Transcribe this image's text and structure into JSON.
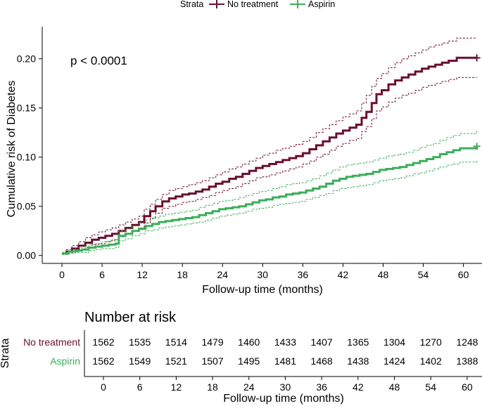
{
  "chart_data": {
    "type": "line",
    "subtype": "kaplan-meier cumulative incidence",
    "ylabel": "Cumulative risk of Diabetes",
    "xlabel": "Follow-up time (months)",
    "xlim": [
      0,
      62
    ],
    "ylim": [
      0,
      0.22
    ],
    "xticks": [
      0,
      6,
      12,
      18,
      24,
      30,
      36,
      42,
      48,
      54,
      60
    ],
    "yticks": [
      0.0,
      0.05,
      0.1,
      0.15,
      0.2
    ],
    "ytick_labels": [
      "0.00",
      "0.05",
      "0.10",
      "0.15",
      "0.20"
    ],
    "annotation": "p < 0.0001",
    "legend": {
      "title": "Strata",
      "position": "top",
      "entries": [
        "No treatment",
        "Aspirin"
      ]
    },
    "series": [
      {
        "name": "No treatment",
        "color": "#6b0f2a",
        "censor_mark": [
          62,
          0.201
        ],
        "x": [
          0,
          0.7,
          1.5,
          2.5,
          3.5,
          4.5,
          5.5,
          6.5,
          7.5,
          8.5,
          9.5,
          10.5,
          11.5,
          12.3,
          13.2,
          14,
          15,
          16,
          17,
          18,
          19,
          20,
          21,
          22,
          23,
          24,
          25,
          26,
          27,
          28,
          29,
          30,
          31,
          32,
          33,
          34,
          35,
          36,
          37,
          38,
          39,
          40,
          41,
          42,
          43,
          44,
          44.8,
          45.5,
          46.3,
          47,
          47.8,
          48.8,
          49.8,
          50.8,
          51.8,
          52.8,
          53.8,
          54.8,
          55.8,
          56.8,
          57.8,
          59,
          62
        ],
        "y": [
          0.002,
          0.004,
          0.007,
          0.01,
          0.013,
          0.016,
          0.018,
          0.02,
          0.022,
          0.025,
          0.028,
          0.031,
          0.034,
          0.04,
          0.045,
          0.05,
          0.055,
          0.058,
          0.06,
          0.062,
          0.063,
          0.065,
          0.067,
          0.07,
          0.073,
          0.075,
          0.078,
          0.08,
          0.083,
          0.086,
          0.089,
          0.091,
          0.093,
          0.095,
          0.097,
          0.099,
          0.101,
          0.104,
          0.108,
          0.112,
          0.116,
          0.12,
          0.124,
          0.127,
          0.13,
          0.133,
          0.14,
          0.146,
          0.155,
          0.164,
          0.168,
          0.174,
          0.178,
          0.181,
          0.184,
          0.187,
          0.19,
          0.192,
          0.194,
          0.196,
          0.198,
          0.201,
          0.201
        ],
        "upper": [
          0.003,
          0.006,
          0.01,
          0.014,
          0.018,
          0.021,
          0.024,
          0.026,
          0.028,
          0.031,
          0.034,
          0.037,
          0.04,
          0.047,
          0.052,
          0.057,
          0.062,
          0.066,
          0.068,
          0.07,
          0.072,
          0.074,
          0.076,
          0.079,
          0.082,
          0.085,
          0.088,
          0.09,
          0.093,
          0.096,
          0.099,
          0.102,
          0.104,
          0.107,
          0.109,
          0.111,
          0.113,
          0.116,
          0.12,
          0.125,
          0.129,
          0.133,
          0.137,
          0.141,
          0.144,
          0.147,
          0.155,
          0.163,
          0.172,
          0.18,
          0.185,
          0.191,
          0.196,
          0.2,
          0.203,
          0.206,
          0.209,
          0.212,
          0.214,
          0.216,
          0.218,
          0.221,
          0.221
        ],
        "lower": [
          0.001,
          0.002,
          0.004,
          0.006,
          0.008,
          0.011,
          0.012,
          0.014,
          0.016,
          0.019,
          0.022,
          0.025,
          0.028,
          0.033,
          0.038,
          0.043,
          0.048,
          0.05,
          0.052,
          0.054,
          0.055,
          0.057,
          0.059,
          0.061,
          0.064,
          0.066,
          0.068,
          0.07,
          0.073,
          0.076,
          0.079,
          0.08,
          0.082,
          0.084,
          0.086,
          0.088,
          0.09,
          0.093,
          0.096,
          0.1,
          0.103,
          0.107,
          0.111,
          0.114,
          0.117,
          0.119,
          0.126,
          0.131,
          0.139,
          0.147,
          0.151,
          0.156,
          0.16,
          0.163,
          0.165,
          0.168,
          0.171,
          0.173,
          0.175,
          0.177,
          0.179,
          0.181,
          0.181
        ]
      },
      {
        "name": "Aspirin",
        "color": "#3cae5a",
        "censor_mark": [
          62,
          0.111
        ],
        "x": [
          0,
          1,
          2,
          3,
          4,
          5,
          6,
          7,
          8,
          8.5,
          9.5,
          10.5,
          11.5,
          12.5,
          13.5,
          14.5,
          15.5,
          16.5,
          17.5,
          18.5,
          19.5,
          20.5,
          21.5,
          22.5,
          23.5,
          24.5,
          25.5,
          26.5,
          27.5,
          28.5,
          29.5,
          30.5,
          31.5,
          32.5,
          33.5,
          34.5,
          35.5,
          36.5,
          37.5,
          38.5,
          39.5,
          40.5,
          41.5,
          42.5,
          43.5,
          44.5,
          45.5,
          46.5,
          47.5,
          48.5,
          49.5,
          50.5,
          51.5,
          52.5,
          53.5,
          54.5,
          55.5,
          56.5,
          57.5,
          58.5,
          59.5,
          62
        ],
        "y": [
          0.002,
          0.004,
          0.005,
          0.006,
          0.008,
          0.009,
          0.01,
          0.011,
          0.012,
          0.02,
          0.022,
          0.025,
          0.027,
          0.03,
          0.032,
          0.034,
          0.035,
          0.036,
          0.037,
          0.038,
          0.039,
          0.041,
          0.043,
          0.045,
          0.047,
          0.048,
          0.049,
          0.05,
          0.052,
          0.054,
          0.056,
          0.057,
          0.059,
          0.06,
          0.062,
          0.063,
          0.064,
          0.066,
          0.068,
          0.07,
          0.073,
          0.076,
          0.078,
          0.08,
          0.081,
          0.082,
          0.083,
          0.085,
          0.087,
          0.088,
          0.089,
          0.09,
          0.092,
          0.094,
          0.096,
          0.098,
          0.1,
          0.103,
          0.105,
          0.107,
          0.109,
          0.111
        ],
        "upper": [
          0.003,
          0.006,
          0.008,
          0.009,
          0.011,
          0.012,
          0.014,
          0.015,
          0.016,
          0.025,
          0.027,
          0.03,
          0.033,
          0.036,
          0.038,
          0.04,
          0.042,
          0.043,
          0.044,
          0.045,
          0.046,
          0.049,
          0.051,
          0.053,
          0.055,
          0.056,
          0.057,
          0.059,
          0.061,
          0.063,
          0.065,
          0.066,
          0.068,
          0.07,
          0.072,
          0.073,
          0.074,
          0.076,
          0.078,
          0.081,
          0.084,
          0.087,
          0.09,
          0.092,
          0.093,
          0.094,
          0.095,
          0.097,
          0.099,
          0.101,
          0.102,
          0.103,
          0.105,
          0.107,
          0.11,
          0.112,
          0.114,
          0.117,
          0.12,
          0.122,
          0.124,
          0.127
        ],
        "lower": [
          0.001,
          0.002,
          0.003,
          0.003,
          0.005,
          0.006,
          0.007,
          0.007,
          0.008,
          0.015,
          0.017,
          0.02,
          0.022,
          0.025,
          0.026,
          0.028,
          0.029,
          0.03,
          0.031,
          0.032,
          0.033,
          0.034,
          0.036,
          0.038,
          0.04,
          0.041,
          0.042,
          0.043,
          0.045,
          0.047,
          0.048,
          0.049,
          0.051,
          0.052,
          0.053,
          0.054,
          0.055,
          0.057,
          0.059,
          0.061,
          0.063,
          0.066,
          0.068,
          0.069,
          0.07,
          0.071,
          0.072,
          0.074,
          0.076,
          0.077,
          0.078,
          0.079,
          0.081,
          0.083,
          0.084,
          0.086,
          0.088,
          0.09,
          0.092,
          0.093,
          0.095,
          0.096
        ]
      }
    ],
    "risk_table": {
      "title": "Number at risk",
      "ylabel": "Strata",
      "xlabel": "Follow-up time (months)",
      "times": [
        0,
        6,
        12,
        18,
        24,
        30,
        36,
        42,
        48,
        54,
        60
      ],
      "rows": [
        {
          "name": "No treatment",
          "color": "#6b0f2a",
          "values": [
            1562,
            1535,
            1514,
            1479,
            1460,
            1433,
            1407,
            1365,
            1304,
            1270,
            1248
          ]
        },
        {
          "name": "Aspirin",
          "color": "#3cae5a",
          "values": [
            1562,
            1549,
            1521,
            1507,
            1495,
            1481,
            1468,
            1438,
            1424,
            1402,
            1388
          ]
        }
      ]
    }
  }
}
